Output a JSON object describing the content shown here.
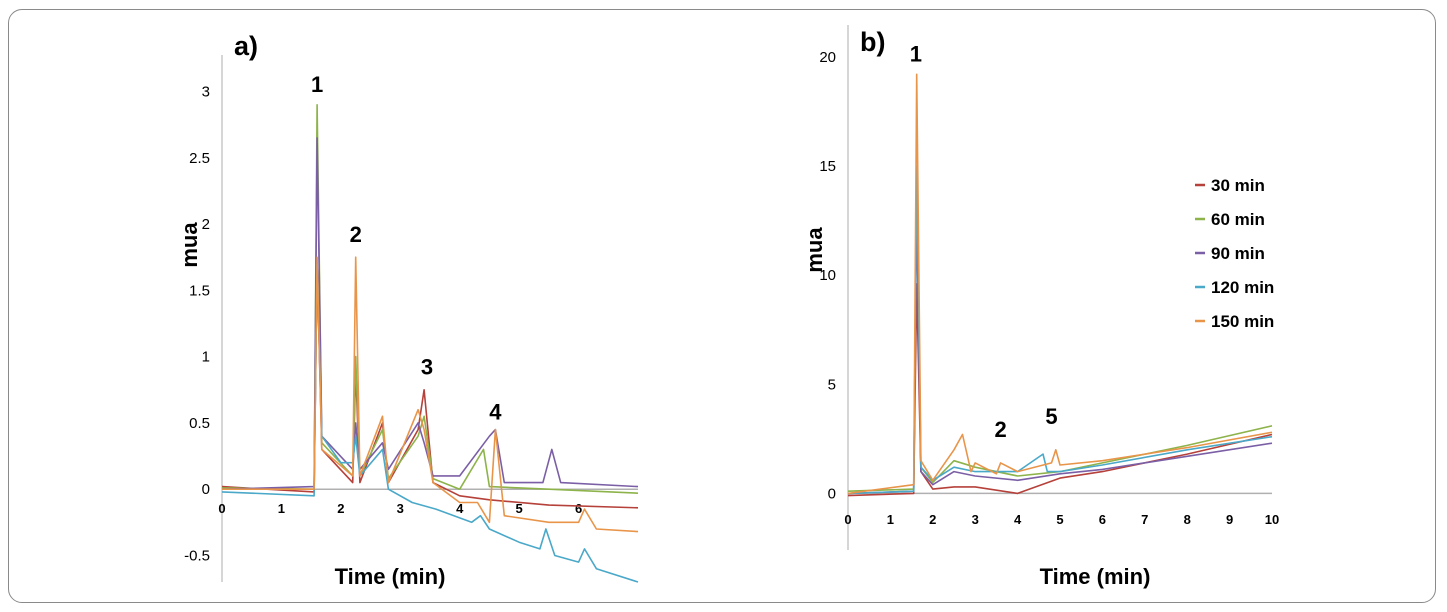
{
  "chart_data": [
    {
      "type": "line",
      "panel_label": "a)",
      "xlabel": "Time (min)",
      "ylabel": "mua",
      "xlim": [
        0,
        7
      ],
      "ylim": [
        -0.7,
        3.2
      ],
      "x_ticks": [
        "0",
        "1",
        "2",
        "3",
        "4",
        "5",
        "6"
      ],
      "y_ticks": [
        "3",
        "2.5",
        "2",
        "1.5",
        "1",
        "0.5",
        "0",
        "-0.5"
      ],
      "peak_labels": [
        {
          "text": "1",
          "x": 1.6,
          "y": 2.95
        },
        {
          "text": "2",
          "x": 2.25,
          "y": 1.82
        },
        {
          "text": "3",
          "x": 3.45,
          "y": 0.82
        },
        {
          "text": "4",
          "x": 4.6,
          "y": 0.48
        }
      ],
      "series": [
        {
          "name": "30 min",
          "color": "#b5413a",
          "points": [
            [
              0,
              0.02
            ],
            [
              1.55,
              -0.02
            ],
            [
              1.6,
              1.7
            ],
            [
              1.68,
              0.3
            ],
            [
              2.2,
              0.05
            ],
            [
              2.25,
              0.9
            ],
            [
              2.32,
              0.05
            ],
            [
              2.7,
              0.5
            ],
            [
              2.8,
              0.05
            ],
            [
              3.3,
              0.45
            ],
            [
              3.4,
              0.75
            ],
            [
              3.55,
              0.05
            ],
            [
              4.0,
              -0.05
            ],
            [
              4.5,
              -0.08
            ],
            [
              5.5,
              -0.12
            ],
            [
              7.0,
              -0.14
            ]
          ]
        },
        {
          "name": "60 min",
          "color": "#8db34a",
          "points": [
            [
              0,
              0.01
            ],
            [
              1.55,
              0.0
            ],
            [
              1.6,
              2.9
            ],
            [
              1.68,
              0.35
            ],
            [
              2.2,
              0.1
            ],
            [
              2.25,
              1.0
            ],
            [
              2.32,
              0.1
            ],
            [
              2.7,
              0.45
            ],
            [
              2.8,
              0.08
            ],
            [
              3.3,
              0.4
            ],
            [
              3.4,
              0.55
            ],
            [
              3.55,
              0.08
            ],
            [
              4.0,
              0.0
            ],
            [
              4.4,
              0.3
            ],
            [
              4.5,
              0.02
            ],
            [
              5.5,
              0.0
            ],
            [
              7.0,
              -0.03
            ]
          ]
        },
        {
          "name": "90 min",
          "color": "#7b5fa6",
          "points": [
            [
              0,
              0.0
            ],
            [
              1.55,
              0.02
            ],
            [
              1.6,
              2.65
            ],
            [
              1.68,
              0.4
            ],
            [
              2.2,
              0.15
            ],
            [
              2.25,
              0.5
            ],
            [
              2.32,
              0.15
            ],
            [
              2.7,
              0.35
            ],
            [
              2.8,
              0.15
            ],
            [
              3.3,
              0.5
            ],
            [
              3.4,
              0.35
            ],
            [
              3.55,
              0.1
            ],
            [
              4.0,
              0.1
            ],
            [
              4.5,
              0.4
            ],
            [
              4.6,
              0.45
            ],
            [
              4.75,
              0.05
            ],
            [
              5.4,
              0.05
            ],
            [
              5.55,
              0.3
            ],
            [
              5.7,
              0.05
            ],
            [
              7.0,
              0.02
            ]
          ]
        },
        {
          "name": "120 min",
          "color": "#4aa8c8",
          "points": [
            [
              0,
              -0.02
            ],
            [
              1.55,
              -0.05
            ],
            [
              1.6,
              1.7
            ],
            [
              1.68,
              0.4
            ],
            [
              2.0,
              0.2
            ],
            [
              2.2,
              0.2
            ],
            [
              2.25,
              0.4
            ],
            [
              2.32,
              0.1
            ],
            [
              2.7,
              0.3
            ],
            [
              2.8,
              0.0
            ],
            [
              3.2,
              -0.1
            ],
            [
              3.6,
              -0.15
            ],
            [
              4.2,
              -0.25
            ],
            [
              4.35,
              -0.2
            ],
            [
              4.5,
              -0.3
            ],
            [
              5.0,
              -0.4
            ],
            [
              5.35,
              -0.45
            ],
            [
              5.45,
              -0.3
            ],
            [
              5.6,
              -0.5
            ],
            [
              6.0,
              -0.55
            ],
            [
              6.1,
              -0.45
            ],
            [
              6.3,
              -0.6
            ],
            [
              7.0,
              -0.7
            ]
          ]
        },
        {
          "name": "150 min",
          "color": "#e8954a",
          "points": [
            [
              0,
              0.0
            ],
            [
              1.55,
              0.0
            ],
            [
              1.6,
              1.75
            ],
            [
              1.68,
              0.3
            ],
            [
              2.2,
              0.1
            ],
            [
              2.25,
              1.75
            ],
            [
              2.32,
              0.1
            ],
            [
              2.7,
              0.55
            ],
            [
              2.8,
              0.05
            ],
            [
              3.3,
              0.6
            ],
            [
              3.4,
              0.45
            ],
            [
              3.55,
              0.05
            ],
            [
              4.0,
              -0.1
            ],
            [
              4.3,
              -0.1
            ],
            [
              4.5,
              -0.25
            ],
            [
              4.6,
              0.45
            ],
            [
              4.75,
              -0.2
            ],
            [
              5.5,
              -0.25
            ],
            [
              6.0,
              -0.25
            ],
            [
              6.1,
              -0.15
            ],
            [
              6.3,
              -0.3
            ],
            [
              7.0,
              -0.32
            ]
          ]
        }
      ]
    },
    {
      "type": "line",
      "panel_label": "b)",
      "xlabel": "Time (min)",
      "ylabel": "mua",
      "xlim": [
        0,
        10
      ],
      "ylim": [
        -2.5,
        21
      ],
      "x_ticks": [
        "0",
        "1",
        "2",
        "3",
        "4",
        "5",
        "6",
        "7",
        "8",
        "9",
        "10"
      ],
      "y_ticks": [
        "20",
        "15",
        "10",
        "5",
        "0"
      ],
      "peak_labels": [
        {
          "text": "1",
          "x": 1.6,
          "y": 19.5
        },
        {
          "text": "2",
          "x": 3.6,
          "y": 2.3
        },
        {
          "text": "5",
          "x": 4.8,
          "y": 2.9
        }
      ],
      "legend": {
        "position": "right"
      },
      "series": [
        {
          "name": "30 min",
          "color": "#b5413a",
          "points": [
            [
              0,
              -0.1
            ],
            [
              1.55,
              0.0
            ],
            [
              1.62,
              9.6
            ],
            [
              1.72,
              1.0
            ],
            [
              2.0,
              0.2
            ],
            [
              2.5,
              0.3
            ],
            [
              3.0,
              0.3
            ],
            [
              4.0,
              0.0
            ],
            [
              5.0,
              0.7
            ],
            [
              6.0,
              1.0
            ],
            [
              8.0,
              1.8
            ],
            [
              10.0,
              2.7
            ]
          ]
        },
        {
          "name": "60 min",
          "color": "#8db34a",
          "points": [
            [
              0,
              0.1
            ],
            [
              1.55,
              0.2
            ],
            [
              1.62,
              14.5
            ],
            [
              1.72,
              1.2
            ],
            [
              2.0,
              0.5
            ],
            [
              2.5,
              1.5
            ],
            [
              3.0,
              1.2
            ],
            [
              4.0,
              0.8
            ],
            [
              5.0,
              1.0
            ],
            [
              6.0,
              1.4
            ],
            [
              8.0,
              2.2
            ],
            [
              10.0,
              3.1
            ]
          ]
        },
        {
          "name": "90 min",
          "color": "#7b5fa6",
          "points": [
            [
              0,
              0.0
            ],
            [
              1.55,
              0.1
            ],
            [
              1.62,
              13.0
            ],
            [
              1.72,
              1.0
            ],
            [
              2.0,
              0.4
            ],
            [
              2.5,
              1.0
            ],
            [
              3.0,
              0.8
            ],
            [
              4.0,
              0.6
            ],
            [
              5.0,
              0.9
            ],
            [
              6.0,
              1.1
            ],
            [
              8.0,
              1.7
            ],
            [
              10.0,
              2.3
            ]
          ]
        },
        {
          "name": "120 min",
          "color": "#4aa8c8",
          "points": [
            [
              0,
              0.0
            ],
            [
              1.55,
              0.1
            ],
            [
              1.62,
              15.0
            ],
            [
              1.72,
              1.2
            ],
            [
              2.0,
              0.6
            ],
            [
              2.5,
              1.2
            ],
            [
              3.0,
              1.0
            ],
            [
              4.0,
              1.0
            ],
            [
              4.6,
              1.8
            ],
            [
              4.7,
              1.0
            ],
            [
              5.0,
              1.0
            ],
            [
              6.0,
              1.3
            ],
            [
              8.0,
              2.0
            ],
            [
              10.0,
              2.6
            ]
          ]
        },
        {
          "name": "150 min",
          "color": "#e8954a",
          "points": [
            [
              0,
              0.0
            ],
            [
              1.55,
              0.4
            ],
            [
              1.62,
              19.2
            ],
            [
              1.72,
              1.5
            ],
            [
              2.0,
              0.6
            ],
            [
              2.5,
              2.0
            ],
            [
              2.7,
              2.7
            ],
            [
              2.9,
              1.0
            ],
            [
              3.0,
              1.4
            ],
            [
              3.5,
              0.9
            ],
            [
              3.6,
              1.4
            ],
            [
              4.0,
              1.0
            ],
            [
              4.8,
              1.4
            ],
            [
              4.9,
              2.0
            ],
            [
              5.0,
              1.3
            ],
            [
              6.0,
              1.5
            ],
            [
              8.0,
              2.1
            ],
            [
              10.0,
              2.8
            ]
          ]
        }
      ]
    }
  ]
}
